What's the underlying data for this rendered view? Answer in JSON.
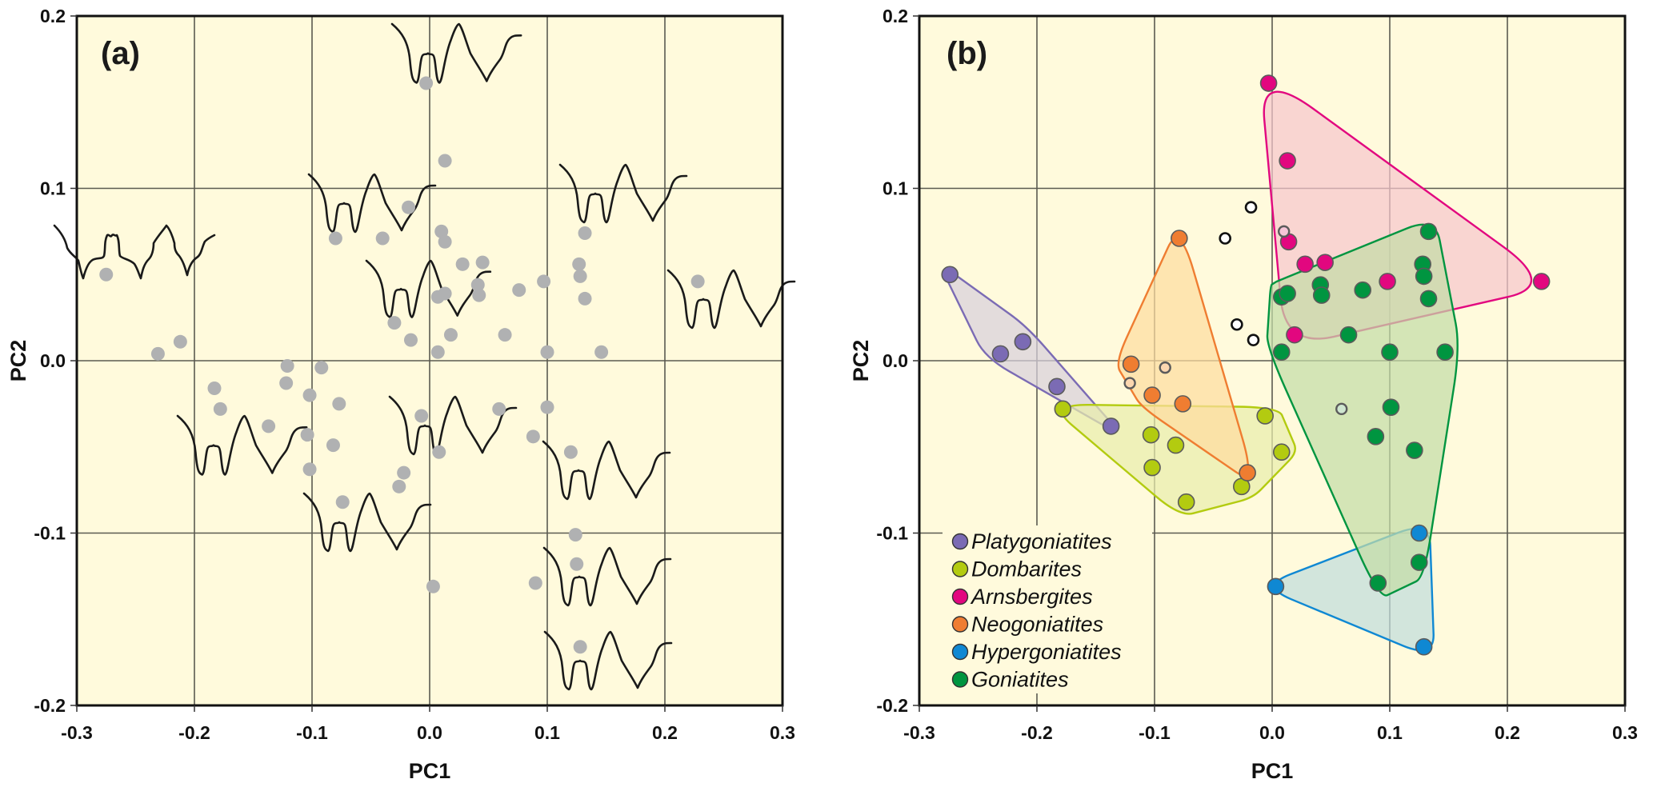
{
  "chart_data": [
    {
      "type": "scatter",
      "panel_label": "(a)",
      "xlabel": "PC1",
      "ylabel": "PC2",
      "xlim": [
        -0.3,
        0.3
      ],
      "ylim": [
        -0.2,
        0.2
      ],
      "xticks": [
        "-0.3",
        "-0.2",
        "-0.1",
        "0.0",
        "0.1",
        "0.2",
        "0.3"
      ],
      "yticks": [
        "0.2",
        "0.1",
        "0.0",
        "-0.1",
        "-0.2"
      ],
      "grid": true,
      "background": "#fffadc",
      "point_color": "#b0b1b2",
      "points": [
        [
          -0.275,
          0.05
        ],
        [
          -0.231,
          0.004
        ],
        [
          -0.212,
          0.011
        ],
        [
          -0.183,
          -0.016
        ],
        [
          -0.178,
          -0.028
        ],
        [
          -0.137,
          -0.038
        ],
        [
          -0.122,
          -0.013
        ],
        [
          -0.121,
          -0.003
        ],
        [
          -0.104,
          -0.043
        ],
        [
          -0.102,
          -0.02
        ],
        [
          -0.102,
          -0.063
        ],
        [
          -0.092,
          -0.004
        ],
        [
          -0.082,
          -0.049
        ],
        [
          -0.08,
          0.071
        ],
        [
          -0.077,
          -0.025
        ],
        [
          -0.074,
          -0.082
        ],
        [
          -0.04,
          0.071
        ],
        [
          -0.03,
          0.022
        ],
        [
          -0.026,
          -0.073
        ],
        [
          -0.022,
          -0.065
        ],
        [
          -0.018,
          0.089
        ],
        [
          -0.016,
          0.012
        ],
        [
          -0.007,
          -0.032
        ],
        [
          -0.003,
          0.161
        ],
        [
          0.003,
          -0.131
        ],
        [
          0.007,
          0.037
        ],
        [
          0.007,
          0.005
        ],
        [
          0.008,
          -0.053
        ],
        [
          0.01,
          0.075
        ],
        [
          0.013,
          0.116
        ],
        [
          0.013,
          0.069
        ],
        [
          0.013,
          0.039
        ],
        [
          0.018,
          0.015
        ],
        [
          0.028,
          0.056
        ],
        [
          0.041,
          0.044
        ],
        [
          0.042,
          0.038
        ],
        [
          0.045,
          0.057
        ],
        [
          0.059,
          -0.028
        ],
        [
          0.064,
          0.015
        ],
        [
          0.076,
          0.041
        ],
        [
          0.088,
          -0.044
        ],
        [
          0.09,
          -0.129
        ],
        [
          0.097,
          0.046
        ],
        [
          0.1,
          0.005
        ],
        [
          0.1,
          -0.027
        ],
        [
          0.12,
          -0.053
        ],
        [
          0.124,
          -0.101
        ],
        [
          0.125,
          -0.118
        ],
        [
          0.127,
          0.056
        ],
        [
          0.128,
          0.049
        ],
        [
          0.128,
          -0.166
        ],
        [
          0.132,
          0.074
        ],
        [
          0.132,
          0.036
        ],
        [
          0.146,
          0.005
        ],
        [
          0.228,
          0.046
        ]
      ],
      "annotations": "suture line drawings placed near morphospace regions"
    },
    {
      "type": "scatter",
      "panel_label": "(b)",
      "xlabel": "PC1",
      "ylabel": "PC2",
      "xlim": [
        -0.3,
        0.3
      ],
      "ylim": [
        -0.2,
        0.2
      ],
      "xticks": [
        "-0.3",
        "-0.2",
        "-0.1",
        "0.0",
        "0.1",
        "0.2",
        "0.3"
      ],
      "yticks": [
        "0.2",
        "0.1",
        "0.0",
        "-0.1",
        "-0.2"
      ],
      "grid": true,
      "background": "#fffadc",
      "legend_position": "bottom-left",
      "series": [
        {
          "name": "Platygoniatites",
          "color": "#7b6bb4",
          "hull_fill": "#d8d0dc",
          "points": [
            [
              -0.274,
              0.05
            ],
            [
              -0.231,
              0.004
            ],
            [
              -0.212,
              0.011
            ],
            [
              -0.183,
              -0.015
            ],
            [
              -0.137,
              -0.038
            ]
          ]
        },
        {
          "name": "Dombarites",
          "color": "#b3cb10",
          "hull_fill": "#e9edac",
          "points": [
            [
              -0.178,
              -0.028
            ],
            [
              -0.103,
              -0.043
            ],
            [
              -0.102,
              -0.062
            ],
            [
              -0.082,
              -0.049
            ],
            [
              -0.073,
              -0.082
            ],
            [
              -0.026,
              -0.073
            ],
            [
              -0.006,
              -0.032
            ],
            [
              0.008,
              -0.053
            ]
          ]
        },
        {
          "name": "Arnsbergites",
          "color": "#e2077f",
          "hull_fill": "#f7c6cd",
          "points": [
            [
              -0.003,
              0.161
            ],
            [
              0.013,
              0.116
            ],
            [
              0.014,
              0.069
            ],
            [
              0.019,
              0.015
            ],
            [
              0.028,
              0.056
            ],
            [
              0.045,
              0.057
            ],
            [
              0.098,
              0.046
            ],
            [
              0.229,
              0.046
            ]
          ]
        },
        {
          "name": "Neogoniatites",
          "color": "#ef7d31",
          "hull_fill": "#fedca0",
          "points": [
            [
              -0.12,
              -0.002
            ],
            [
              -0.102,
              -0.02
            ],
            [
              -0.079,
              0.071
            ],
            [
              -0.076,
              -0.025
            ],
            [
              -0.021,
              -0.065
            ]
          ]
        },
        {
          "name": "Hypergoniatites",
          "color": "#0f88d3",
          "hull_fill": "#c0dcdc",
          "points": [
            [
              0.003,
              -0.131
            ],
            [
              0.125,
              -0.1
            ],
            [
              0.129,
              -0.166
            ]
          ]
        },
        {
          "name": "Goniatites",
          "color": "#009540",
          "hull_fill": "#c3dda7",
          "points": [
            [
              0.008,
              0.037
            ],
            [
              0.008,
              0.005
            ],
            [
              0.013,
              0.039
            ],
            [
              0.041,
              0.044
            ],
            [
              0.042,
              0.038
            ],
            [
              0.065,
              0.015
            ],
            [
              0.077,
              0.041
            ],
            [
              0.088,
              -0.044
            ],
            [
              0.09,
              -0.129
            ],
            [
              0.1,
              0.005
            ],
            [
              0.101,
              -0.027
            ],
            [
              0.121,
              -0.052
            ],
            [
              0.125,
              -0.117
            ],
            [
              0.128,
              0.056
            ],
            [
              0.129,
              0.049
            ],
            [
              0.133,
              0.075
            ],
            [
              0.133,
              0.036
            ],
            [
              0.147,
              0.005
            ]
          ]
        }
      ],
      "unassigned_points": [
        [
          -0.04,
          0.071
        ],
        [
          -0.03,
          0.021
        ],
        [
          -0.018,
          0.089
        ],
        [
          -0.016,
          0.012
        ]
      ],
      "minor_points": [
        {
          "x": -0.121,
          "y": -0.013,
          "fill": "#fcd7b0"
        },
        {
          "x": -0.091,
          "y": -0.004,
          "fill": "#fcd7b0"
        },
        {
          "x": 0.01,
          "y": 0.075,
          "fill": "#f6c6d8"
        },
        {
          "x": 0.059,
          "y": -0.028,
          "fill": "#cfe6d0"
        }
      ]
    }
  ]
}
